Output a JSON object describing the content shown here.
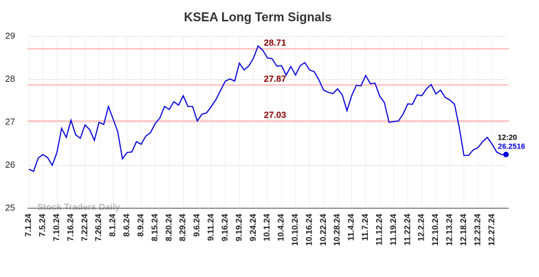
{
  "chart_data": {
    "type": "line",
    "title": "KSEA Long Term Signals",
    "watermark": "Stock Traders Daily",
    "categories": [
      "7.1.24",
      null,
      null,
      "7.5.24",
      null,
      null,
      "7.10.24",
      null,
      null,
      "7.16.24",
      null,
      null,
      "7.22.24",
      null,
      null,
      "7.26.24",
      null,
      null,
      "8.1.24",
      null,
      null,
      "8.6.24",
      null,
      null,
      "8.9.24",
      null,
      null,
      "8.15.24",
      null,
      null,
      "8.20.24",
      null,
      null,
      "8.29.24",
      null,
      null,
      "9.6.24",
      null,
      null,
      "9.11.24",
      null,
      null,
      "9.16.24",
      null,
      null,
      "9.19.24",
      null,
      null,
      "9.24.24",
      null,
      null,
      "10.1.24",
      null,
      null,
      "10.4.24",
      null,
      null,
      "10.10.24",
      null,
      null,
      "10.16.24",
      null,
      null,
      "10.22.24",
      null,
      null,
      "10.28.24",
      null,
      null,
      "11.4.24",
      null,
      null,
      "11.7.24",
      null,
      null,
      "11.12.24",
      null,
      null,
      "11.19.24",
      null,
      null,
      "11.22.24",
      null,
      null,
      "12.2.24",
      null,
      null,
      "12.10.24",
      null,
      null,
      "12.13.24",
      null,
      null,
      "12.18.24",
      null,
      null,
      "12.23.24",
      null,
      null,
      "12.27.24",
      null,
      null,
      null
    ],
    "series": [
      {
        "color": "#0000dd",
        "values": [
          25.91,
          25.86,
          26.17,
          26.25,
          26.18,
          26.0,
          26.3,
          26.86,
          26.65,
          27.05,
          26.71,
          26.63,
          26.94,
          26.83,
          26.58,
          27.0,
          26.95,
          27.37,
          27.08,
          26.78,
          26.15,
          26.3,
          26.31,
          26.55,
          26.49,
          26.68,
          26.76,
          26.97,
          27.1,
          27.37,
          27.3,
          27.48,
          27.4,
          27.62,
          27.37,
          27.37,
          27.03,
          27.19,
          27.22,
          27.37,
          27.53,
          27.75,
          27.96,
          28.01,
          27.96,
          28.38,
          28.22,
          28.31,
          28.49,
          28.78,
          28.68,
          28.5,
          28.48,
          28.31,
          28.32,
          28.1,
          28.3,
          28.1,
          28.32,
          28.39,
          28.22,
          28.18,
          27.99,
          27.75,
          27.7,
          27.67,
          27.78,
          27.64,
          27.27,
          27.62,
          27.86,
          27.85,
          28.09,
          27.9,
          27.91,
          27.61,
          27.46,
          27.0,
          27.02,
          27.03,
          27.19,
          27.43,
          27.42,
          27.64,
          27.62,
          27.78,
          27.88,
          27.66,
          27.75,
          27.58,
          27.52,
          27.42,
          26.89,
          26.23,
          26.23,
          26.36,
          26.41,
          26.55,
          26.65,
          26.5,
          26.31,
          26.25,
          26.2516
        ]
      }
    ],
    "hlines": [
      28.71,
      27.87,
      27.03
    ],
    "hline_color": "#ffbbbb",
    "hline_label_color": "#8b0000",
    "last_time": "12:20",
    "ylim": [
      25,
      29
    ],
    "yticks": [
      25,
      26,
      27,
      28,
      29
    ],
    "grid": true
  }
}
